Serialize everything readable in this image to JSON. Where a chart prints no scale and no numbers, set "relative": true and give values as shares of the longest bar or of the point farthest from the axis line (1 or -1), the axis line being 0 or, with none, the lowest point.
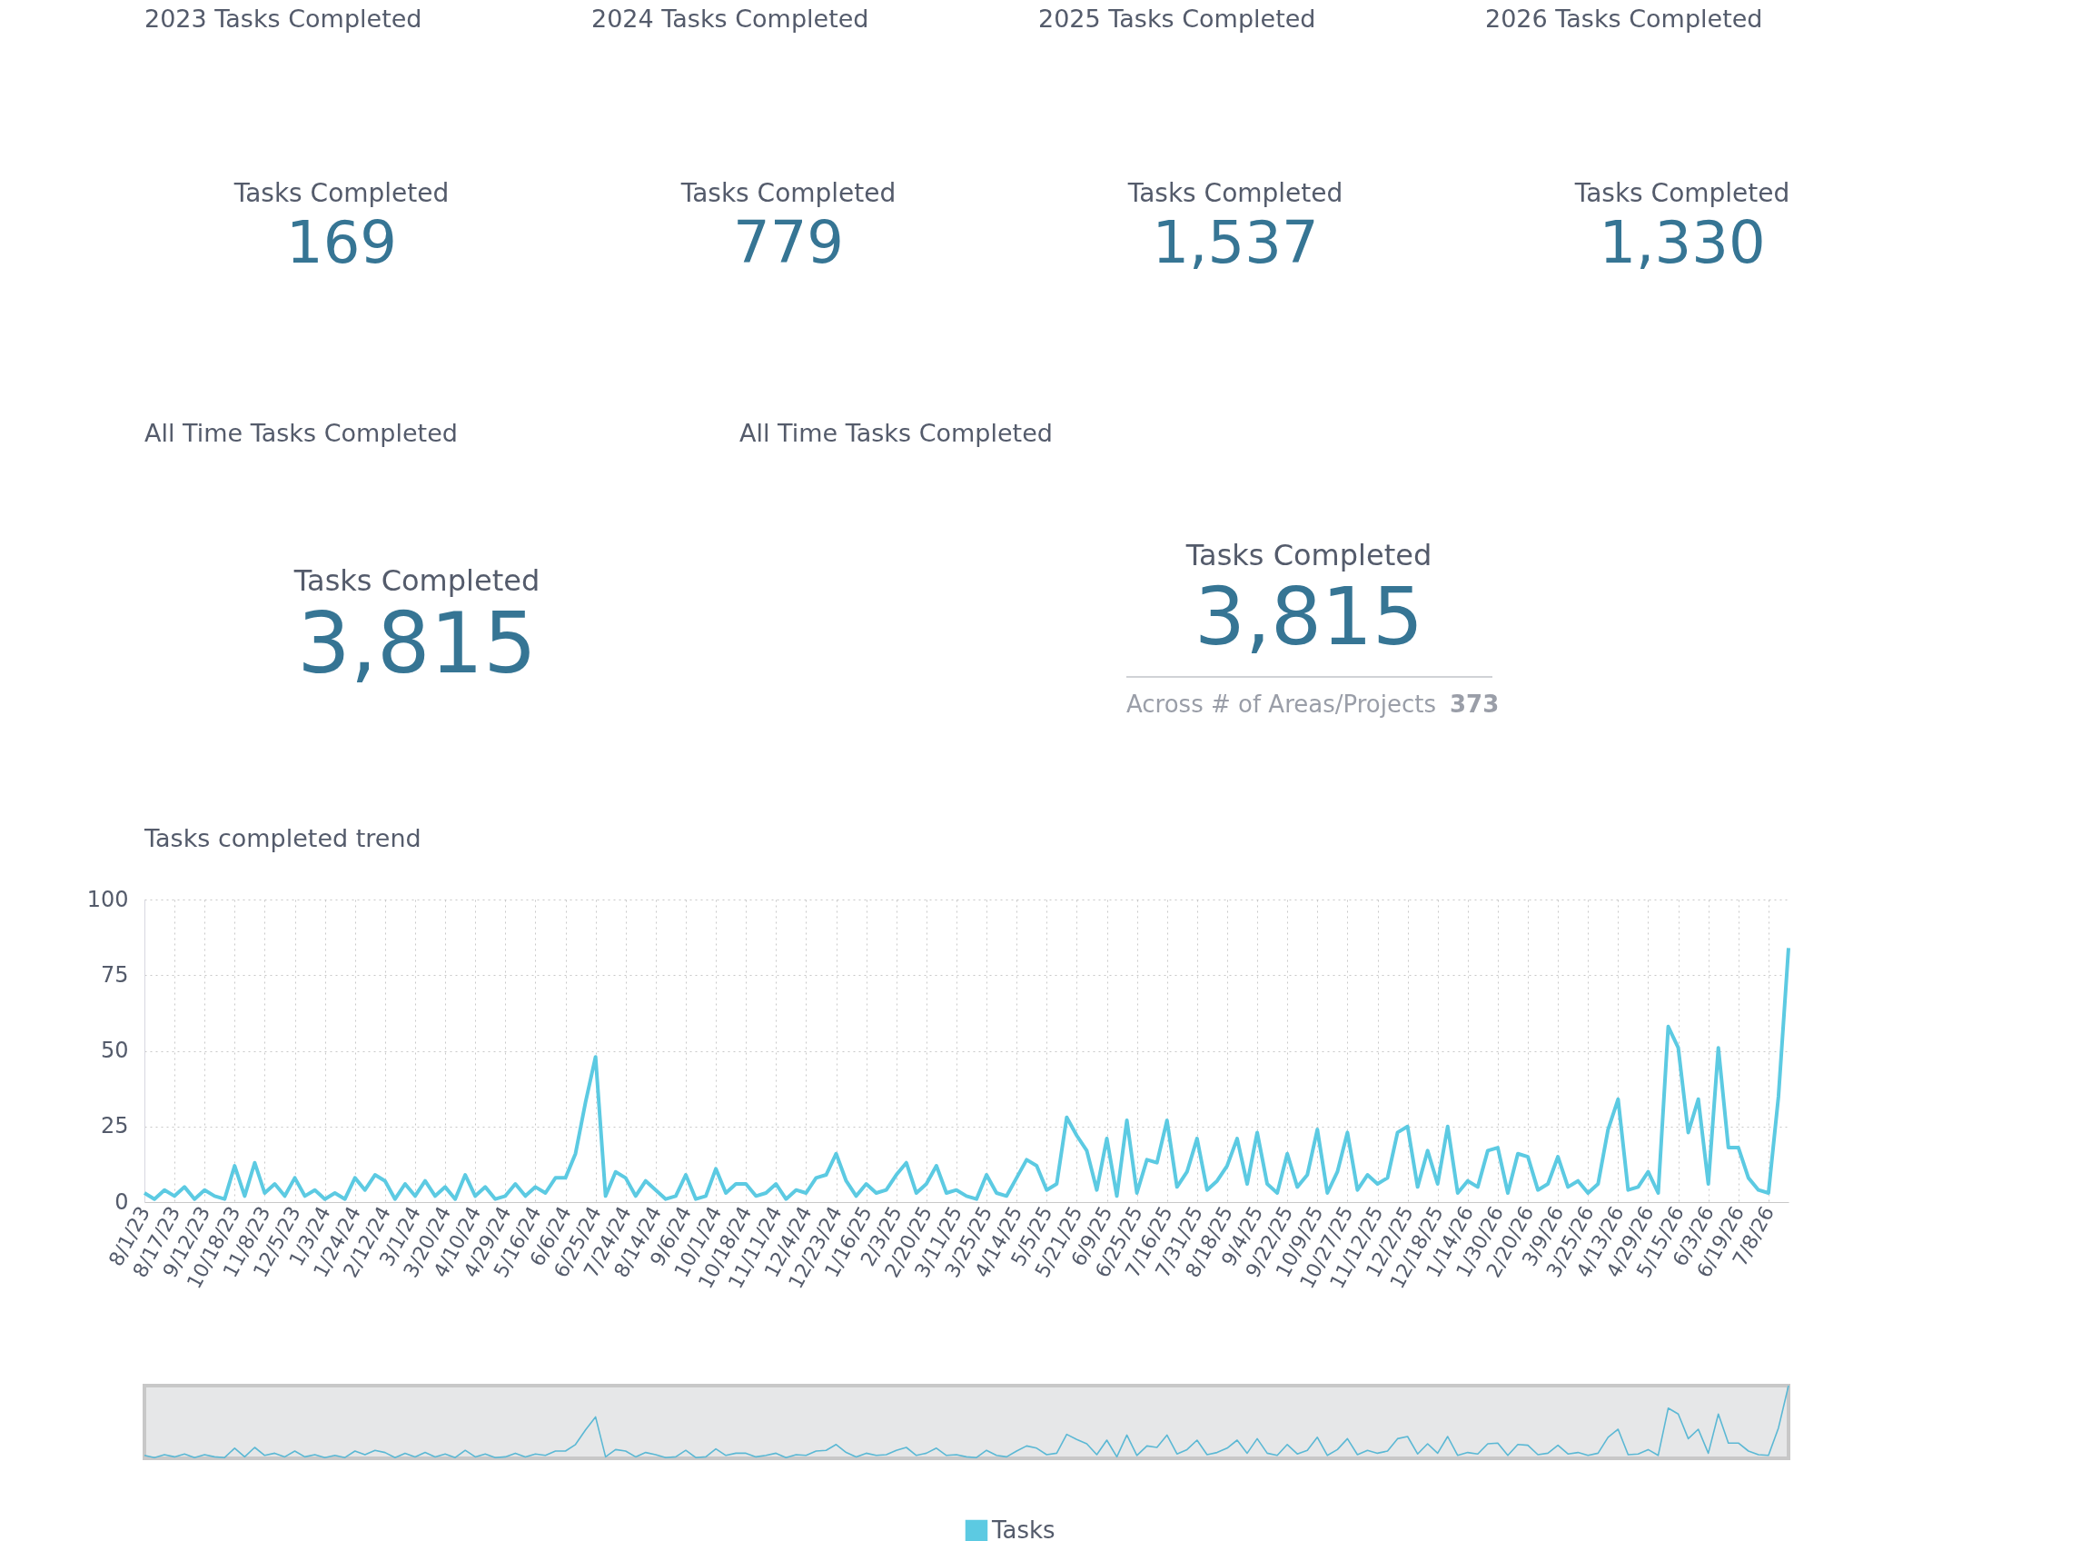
{
  "chart_data": [
    {
      "type": "other",
      "title": "2023 Tasks Completed",
      "annotations": [
        "Tasks Completed",
        "169"
      ]
    },
    {
      "type": "other",
      "title": "2024 Tasks Completed",
      "annotations": [
        "Tasks Completed",
        "779"
      ]
    },
    {
      "type": "other",
      "title": "2025 Tasks Completed",
      "annotations": [
        "Tasks Completed",
        "1,537"
      ]
    },
    {
      "type": "other",
      "title": "2026 Tasks Completed",
      "annotations": [
        "Tasks Completed",
        "1,330"
      ]
    },
    {
      "type": "other",
      "title": "All Time Tasks Completed",
      "annotations": [
        "Tasks Completed",
        "3,815"
      ]
    },
    {
      "type": "other",
      "title": "All Time Tasks Completed",
      "annotations": [
        "Tasks Completed",
        "3,815",
        "Across # of Areas/Projects",
        "373"
      ]
    },
    {
      "type": "line",
      "title": "Tasks completed trend",
      "categories": [
        "8/1/23",
        null,
        null,
        "8/17/23",
        null,
        null,
        "9/12/23",
        null,
        null,
        "10/18/23",
        null,
        null,
        "11/8/23",
        null,
        null,
        "12/5/23",
        null,
        null,
        "1/3/24",
        null,
        null,
        "1/24/24",
        null,
        null,
        "2/12/24",
        null,
        null,
        "3/1/24",
        null,
        null,
        "3/20/24",
        null,
        null,
        "4/10/24",
        null,
        null,
        "4/29/24",
        null,
        null,
        "5/16/24",
        null,
        null,
        "6/6/24",
        null,
        null,
        "6/25/24",
        null,
        null,
        "7/24/24",
        null,
        null,
        "8/14/24",
        null,
        null,
        "9/6/24",
        null,
        null,
        "10/1/24",
        null,
        null,
        "10/18/24",
        null,
        null,
        "11/11/24",
        null,
        null,
        "12/4/24",
        null,
        null,
        "12/23/24",
        null,
        null,
        "1/16/25",
        null,
        null,
        "2/3/25",
        null,
        null,
        "2/20/25",
        null,
        null,
        "3/11/25",
        null,
        null,
        "3/25/25",
        null,
        null,
        "4/14/25",
        null,
        null,
        "5/5/25",
        null,
        null,
        "5/21/25",
        null,
        null,
        "6/9/25",
        null,
        null,
        "6/25/25",
        null,
        null,
        "7/16/25",
        null,
        null,
        "7/31/25",
        null,
        null,
        "8/18/25",
        null,
        null,
        "9/4/25",
        null,
        null,
        "9/22/25",
        null,
        null,
        "10/9/25",
        null,
        null,
        "10/27/25",
        null,
        null,
        "11/12/25",
        null,
        null,
        "12/2/25",
        null,
        null,
        "12/18/25",
        null,
        null,
        "1/14/26",
        null,
        null,
        "1/30/26",
        null,
        null,
        "2/20/26",
        null,
        null,
        "3/9/26",
        null,
        null,
        "3/25/26",
        null,
        null,
        "4/13/26",
        null,
        null,
        "4/29/26",
        null,
        null,
        "5/15/26",
        null,
        null,
        "6/3/26",
        null,
        null,
        "6/19/26",
        null,
        null,
        "7/8/26",
        null,
        null
      ],
      "series": [
        {
          "name": "Tasks",
          "color": "#5ccae2",
          "values": [
            3,
            1,
            4,
            2,
            5,
            1,
            4,
            2,
            1,
            12,
            2,
            13,
            3,
            6,
            2,
            8,
            2,
            4,
            1,
            3,
            1,
            8,
            4,
            9,
            7,
            1,
            6,
            2,
            7,
            2,
            5,
            1,
            9,
            2,
            5,
            1,
            2,
            6,
            2,
            5,
            3,
            8,
            8,
            16,
            33,
            48,
            2,
            10,
            8,
            2,
            7,
            4,
            1,
            2,
            9,
            1,
            2,
            11,
            3,
            6,
            6,
            2,
            3,
            6,
            1,
            4,
            3,
            8,
            9,
            16,
            7,
            2,
            6,
            3,
            4,
            9,
            13,
            3,
            6,
            12,
            3,
            4,
            2,
            1,
            9,
            3,
            2,
            8,
            14,
            12,
            4,
            6,
            28,
            22,
            17,
            4,
            21,
            2,
            27,
            3,
            14,
            13,
            27,
            5,
            10,
            21,
            4,
            7,
            12,
            21,
            6,
            23,
            6,
            3,
            16,
            5,
            9,
            24,
            3,
            10,
            23,
            4,
            9,
            6,
            8,
            23,
            25,
            5,
            17,
            6,
            25,
            3,
            7,
            5,
            17,
            18,
            3,
            16,
            15,
            4,
            6,
            15,
            5,
            7,
            3,
            6,
            24,
            34,
            4,
            5,
            10,
            3,
            58,
            51,
            23,
            34,
            6,
            51,
            18,
            18,
            8,
            4,
            3,
            35,
            84
          ]
        }
      ],
      "ylim": [
        0,
        100
      ],
      "yticks": [
        0,
        25,
        50,
        75,
        100
      ],
      "grid": true,
      "legend": "bottom"
    },
    {
      "type": "line",
      "relative": true,
      "categories": [
        null,
        null,
        null,
        null,
        null,
        null,
        null,
        null,
        null,
        null,
        null,
        null,
        null,
        null,
        null,
        null,
        null,
        null,
        null,
        null,
        null,
        null,
        null,
        null,
        null,
        null,
        null,
        null,
        null,
        null,
        null,
        null,
        null,
        null,
        null,
        null,
        null,
        null,
        null,
        null,
        null,
        null,
        null,
        null,
        null,
        null,
        null,
        null,
        null,
        null,
        null,
        null,
        null,
        null,
        null,
        null,
        null,
        null,
        null,
        null,
        null,
        null,
        null,
        null,
        null,
        null,
        null,
        null,
        null,
        null,
        null,
        null,
        null,
        null,
        null,
        null,
        null,
        null,
        null,
        null,
        null,
        null,
        null,
        null,
        null,
        null,
        null,
        null,
        null,
        null,
        null,
        null,
        null,
        null,
        null,
        null,
        null,
        null,
        null,
        null,
        null,
        null,
        null,
        null,
        null,
        null,
        null,
        null,
        null,
        null,
        null,
        null,
        null,
        null,
        null,
        null,
        null,
        null,
        null,
        null,
        null,
        null,
        null,
        null,
        null,
        null,
        null,
        null,
        null,
        null,
        null,
        null,
        null,
        null,
        null,
        null,
        null,
        null,
        null,
        null,
        null,
        null,
        null,
        null,
        null,
        null,
        null,
        null,
        null,
        null,
        null,
        null,
        null,
        null,
        null,
        null,
        null,
        null,
        null,
        null,
        null,
        null,
        null,
        null,
        null
      ],
      "series": [
        {
          "color": "#5bb8d4",
          "values": [
            0.04,
            0.01,
            0.05,
            0.02,
            0.06,
            0.01,
            0.05,
            0.02,
            0.01,
            0.14,
            0.02,
            0.15,
            0.04,
            0.07,
            0.02,
            0.1,
            0.02,
            0.05,
            0.01,
            0.04,
            0.01,
            0.1,
            0.05,
            0.11,
            0.08,
            0.01,
            0.07,
            0.02,
            0.08,
            0.02,
            0.06,
            0.01,
            0.11,
            0.02,
            0.06,
            0.01,
            0.02,
            0.07,
            0.02,
            0.06,
            0.04,
            0.1,
            0.1,
            0.19,
            0.39,
            0.57,
            0.02,
            0.12,
            0.1,
            0.02,
            0.08,
            0.05,
            0.01,
            0.02,
            0.11,
            0.01,
            0.02,
            0.13,
            0.04,
            0.07,
            0.07,
            0.02,
            0.04,
            0.07,
            0.01,
            0.05,
            0.04,
            0.1,
            0.11,
            0.19,
            0.08,
            0.02,
            0.07,
            0.04,
            0.05,
            0.11,
            0.15,
            0.04,
            0.07,
            0.14,
            0.04,
            0.05,
            0.02,
            0.01,
            0.11,
            0.04,
            0.02,
            0.1,
            0.17,
            0.14,
            0.05,
            0.07,
            0.33,
            0.26,
            0.2,
            0.05,
            0.25,
            0.02,
            0.32,
            0.04,
            0.17,
            0.15,
            0.32,
            0.06,
            0.12,
            0.25,
            0.05,
            0.08,
            0.14,
            0.25,
            0.07,
            0.27,
            0.07,
            0.04,
            0.19,
            0.06,
            0.11,
            0.29,
            0.04,
            0.12,
            0.27,
            0.05,
            0.11,
            0.07,
            0.1,
            0.27,
            0.3,
            0.06,
            0.2,
            0.07,
            0.3,
            0.04,
            0.08,
            0.06,
            0.2,
            0.21,
            0.04,
            0.19,
            0.18,
            0.05,
            0.07,
            0.18,
            0.06,
            0.08,
            0.04,
            0.07,
            0.29,
            0.4,
            0.05,
            0.06,
            0.12,
            0.04,
            0.69,
            0.61,
            0.27,
            0.4,
            0.07,
            0.61,
            0.21,
            0.21,
            0.1,
            0.05,
            0.04,
            0.42,
            1
          ]
        }
      ]
    }
  ]
}
